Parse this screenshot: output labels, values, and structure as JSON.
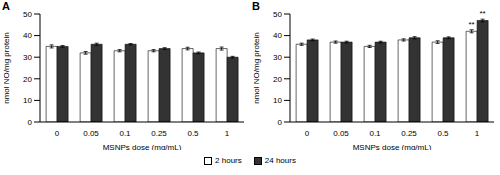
{
  "chart_data": [
    {
      "type": "bar",
      "title": "A",
      "x_label": "MSNPs dose (mg/mL)",
      "y_label": "nmol NO/mg protein",
      "categories": [
        "0",
        "0.05",
        "0.1",
        "0.25",
        "0.5",
        "1"
      ],
      "series": [
        {
          "name": "2 hours",
          "color": "#ffffff",
          "values": [
            35,
            32,
            33,
            33,
            34,
            34
          ],
          "errors": [
            0.7,
            0.6,
            0.5,
            0.5,
            0.6,
            0.7
          ]
        },
        {
          "name": "24 hours",
          "color": "#333333",
          "values": [
            35,
            36,
            36,
            34,
            32,
            30
          ],
          "errors": [
            0.4,
            0.5,
            0.3,
            0.4,
            0.4,
            0.4
          ]
        }
      ],
      "ylim": [
        0,
        50
      ],
      "yticks": [
        0,
        10,
        20,
        30,
        40,
        50
      ],
      "legend": "bottom"
    },
    {
      "type": "bar",
      "title": "B",
      "x_label": "MSNPs dose (mg/mL)",
      "y_label": "nmol NO/mg protein",
      "categories": [
        "0",
        "0.05",
        "0.1",
        "0.25",
        "0.5",
        "1"
      ],
      "series": [
        {
          "name": "2 hours",
          "color": "#ffffff",
          "values": [
            36,
            37,
            35,
            38,
            37,
            42
          ],
          "errors": [
            0.5,
            0.5,
            0.5,
            0.5,
            0.6,
            0.7
          ]
        },
        {
          "name": "24 hours",
          "color": "#333333",
          "values": [
            38,
            37,
            37,
            39,
            39,
            47
          ],
          "errors": [
            0.4,
            0.4,
            0.4,
            0.5,
            0.4,
            0.6
          ]
        }
      ],
      "ylim": [
        0,
        50
      ],
      "yticks": [
        0,
        10,
        20,
        30,
        40,
        50
      ],
      "annotations": [
        {
          "text": "**",
          "category": "1",
          "series": "2 hours"
        },
        {
          "text": "**",
          "category": "1",
          "series": "24 hours"
        }
      ]
    }
  ]
}
